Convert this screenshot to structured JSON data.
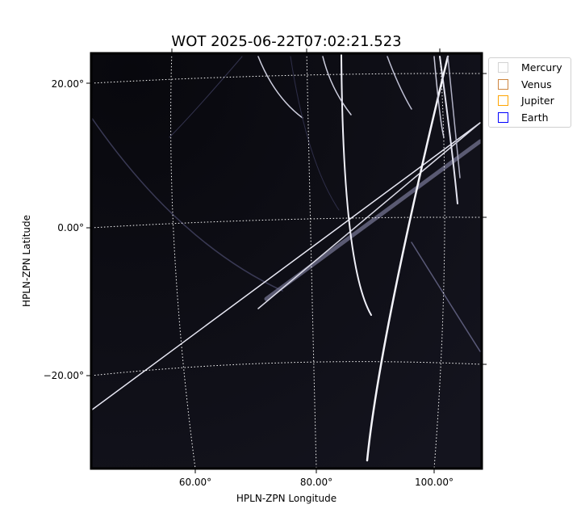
{
  "chart_data": {
    "type": "image",
    "title": "WOT 2025-06-22T07:02:21.523",
    "xlabel": "HPLN-ZPN Longitude",
    "ylabel": "HPLN-ZPN Latitude",
    "x_ticks": [
      "60.00°",
      "80.00°",
      "100.00°"
    ],
    "y_ticks": [
      "20.00°",
      "0.00°",
      "−20.00°"
    ],
    "grid": true,
    "colormap": "bone",
    "legend_placement": "outside-top-right",
    "legend": [
      {
        "name": "Mercury",
        "color": "#d3d3d3"
      },
      {
        "name": "Venus",
        "color": "#cd853f"
      },
      {
        "name": "Jupiter",
        "color": "#ffa500"
      },
      {
        "name": "Earth",
        "color": "#0000ff"
      }
    ]
  }
}
